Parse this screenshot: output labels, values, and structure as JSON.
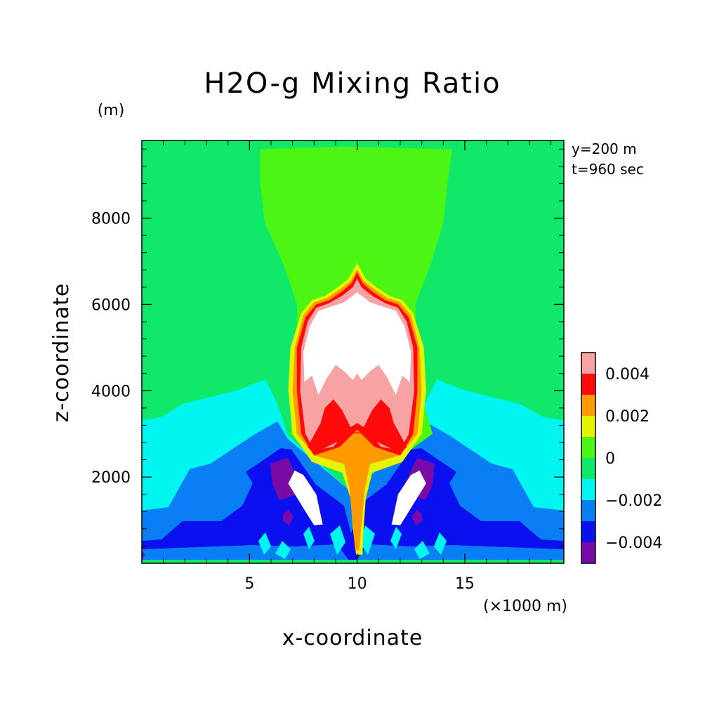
{
  "chart_data": {
    "type": "heatmap",
    "title": "H2O-g Mixing Ratio",
    "xlabel": "x-coordinate",
    "ylabel": "z-coordinate",
    "x_units": "(×1000 m)",
    "y_units": "(m)",
    "xlim": [
      0,
      19.6
    ],
    "ylim": [
      0,
      9800
    ],
    "x_ticks": [
      5,
      10,
      15
    ],
    "x_tick_labels": [
      "5",
      "10",
      "15"
    ],
    "y_ticks": [
      2000,
      4000,
      6000,
      8000
    ],
    "y_tick_labels": [
      "2000",
      "4000",
      "6000",
      "8000"
    ],
    "annotations": [
      "y=200 m",
      "t=960 sec"
    ],
    "colorbar": {
      "levels": [
        -0.005,
        -0.004,
        -0.003,
        -0.002,
        -0.001,
        0,
        0.001,
        0.002,
        0.003,
        0.004,
        0.005
      ],
      "colors": [
        "#7a0aa8",
        "#0a10ee",
        "#0a7ff5",
        "#00f5f0",
        "#10e86a",
        "#4cf514",
        "#e4f500",
        "#ff9a00",
        "#ff0a0a",
        "#f7a3a3"
      ],
      "labels": [
        {
          "value": -0.004,
          "text": "−0.004"
        },
        {
          "value": -0.002,
          "text": "−0.002"
        },
        {
          "value": 0,
          "text": "0"
        },
        {
          "value": 0.002,
          "text": "0.002"
        },
        {
          "value": 0.004,
          "text": "0.004"
        }
      ],
      "above_max_color": "#ffffff"
    },
    "contour_regions": [
      {
        "level": "0 to 0.001",
        "color": "#4cf514",
        "points": [
          [
            5.5,
            9600
          ],
          [
            9.5,
            9660
          ],
          [
            14.4,
            9600
          ],
          [
            14.2,
            8800
          ],
          [
            14,
            7900
          ],
          [
            13.4,
            6900
          ],
          [
            12.7,
            6000
          ],
          [
            12.8,
            4200
          ],
          [
            13.5,
            3000
          ],
          [
            12.4,
            2600
          ],
          [
            10,
            2400
          ],
          [
            7.6,
            2600
          ],
          [
            6.9,
            3000
          ],
          [
            7.2,
            4200
          ],
          [
            7.2,
            6000
          ],
          [
            6.6,
            6900
          ],
          [
            5.7,
            7900
          ],
          [
            5.5,
            8800
          ]
        ]
      },
      {
        "level": "0.001 to 0.002",
        "color": "#e4f500",
        "points": [
          [
            10,
            6960
          ],
          [
            10.4,
            6600
          ],
          [
            10.9,
            6400
          ],
          [
            11.5,
            6200
          ],
          [
            12.1,
            6100
          ],
          [
            12.6,
            5800
          ],
          [
            13.1,
            5000
          ],
          [
            13.2,
            4000
          ],
          [
            13,
            3000
          ],
          [
            12.1,
            2350
          ],
          [
            10.7,
            2100
          ],
          [
            10.4,
            1500
          ],
          [
            10.3,
            800
          ],
          [
            10.25,
            200
          ],
          [
            9.95,
            200
          ],
          [
            9.8,
            800
          ],
          [
            9.7,
            1500
          ],
          [
            9.3,
            2100
          ],
          [
            7.9,
            2350
          ],
          [
            7,
            3000
          ],
          [
            6.8,
            4000
          ],
          [
            6.9,
            5000
          ],
          [
            7.4,
            5800
          ],
          [
            7.9,
            6100
          ],
          [
            8.5,
            6200
          ],
          [
            9.1,
            6400
          ],
          [
            9.6,
            6600
          ]
        ]
      },
      {
        "level": "0.002 to 0.003",
        "color": "#ff9a00",
        "points": [
          [
            10,
            6820
          ],
          [
            10.3,
            6550
          ],
          [
            10.8,
            6350
          ],
          [
            11.4,
            6150
          ],
          [
            12,
            6050
          ],
          [
            12.5,
            5750
          ],
          [
            12.9,
            5000
          ],
          [
            13,
            4000
          ],
          [
            12.8,
            3000
          ],
          [
            12,
            2500
          ],
          [
            10.6,
            2300
          ],
          [
            10.35,
            1700
          ],
          [
            10.2,
            900
          ],
          [
            10.1,
            300
          ],
          [
            9.9,
            300
          ],
          [
            9.8,
            900
          ],
          [
            9.65,
            1700
          ],
          [
            9.4,
            2300
          ],
          [
            8,
            2500
          ],
          [
            7.2,
            3000
          ],
          [
            7,
            4000
          ],
          [
            7.1,
            5000
          ],
          [
            7.5,
            5750
          ],
          [
            8,
            6050
          ],
          [
            8.6,
            6150
          ],
          [
            9.2,
            6350
          ],
          [
            9.7,
            6550
          ]
        ]
      },
      {
        "level": "0.003 to 0.004",
        "color": "#ff0a0a",
        "points": [
          [
            10,
            6750
          ],
          [
            10.25,
            6500
          ],
          [
            10.7,
            6300
          ],
          [
            11.3,
            6100
          ],
          [
            11.9,
            6000
          ],
          [
            12.4,
            5700
          ],
          [
            12.8,
            5000
          ],
          [
            12.8,
            4000
          ],
          [
            12.6,
            3000
          ],
          [
            12,
            2500
          ],
          [
            10.8,
            2700
          ],
          [
            10,
            3100
          ],
          [
            9.2,
            2700
          ],
          [
            8,
            2500
          ],
          [
            7.4,
            3000
          ],
          [
            7.2,
            4000
          ],
          [
            7.2,
            5000
          ],
          [
            7.6,
            5700
          ],
          [
            8.1,
            6000
          ],
          [
            8.7,
            6100
          ],
          [
            9.3,
            6300
          ],
          [
            9.75,
            6500
          ]
        ]
      },
      {
        "level": "0.004 to 0.005",
        "color": "#f7a3a3",
        "points": [
          [
            10,
            6600
          ],
          [
            10.2,
            6400
          ],
          [
            10.7,
            6200
          ],
          [
            11.3,
            6030
          ],
          [
            11.9,
            5920
          ],
          [
            12.3,
            5600
          ],
          [
            12.6,
            5000
          ],
          [
            12.65,
            4000
          ],
          [
            12.4,
            3000
          ],
          [
            12,
            2620
          ],
          [
            11.1,
            2700
          ],
          [
            10.5,
            3100
          ],
          [
            10,
            3250
          ],
          [
            9.5,
            3100
          ],
          [
            8.9,
            2700
          ],
          [
            8,
            2620
          ],
          [
            7.6,
            3000
          ],
          [
            7.35,
            4000
          ],
          [
            7.4,
            5000
          ],
          [
            7.7,
            5600
          ],
          [
            8.1,
            5920
          ],
          [
            8.7,
            6030
          ],
          [
            9.3,
            6200
          ],
          [
            9.8,
            6400
          ]
        ]
      },
      {
        "level": "0.003 to 0.004",
        "color": "#ff0a0a",
        "points": [
          [
            7.7,
            2700
          ],
          [
            8.3,
            3250
          ],
          [
            8.5,
            3600
          ],
          [
            8.9,
            3800
          ],
          [
            9.3,
            3550
          ],
          [
            9.7,
            3150
          ],
          [
            10,
            3000
          ],
          [
            10.3,
            3150
          ],
          [
            10.7,
            3550
          ],
          [
            11.1,
            3800
          ],
          [
            11.5,
            3600
          ],
          [
            11.7,
            3250
          ],
          [
            12.3,
            2700
          ],
          [
            12,
            2550
          ],
          [
            10,
            3050
          ],
          [
            8,
            2550
          ]
        ]
      },
      {
        "level": "above 0.005",
        "color": "#ffffff",
        "points": [
          [
            10,
            6280
          ],
          [
            10.6,
            6050
          ],
          [
            11.2,
            5950
          ],
          [
            11.8,
            5850
          ],
          [
            12.2,
            5500
          ],
          [
            12.5,
            4900
          ],
          [
            12.45,
            4200
          ],
          [
            12.1,
            4350
          ],
          [
            11.8,
            3900
          ],
          [
            11.4,
            4300
          ],
          [
            11,
            4600
          ],
          [
            10.6,
            4450
          ],
          [
            10.2,
            4250
          ],
          [
            10,
            4400
          ],
          [
            9.8,
            4250
          ],
          [
            9.4,
            4450
          ],
          [
            9,
            4600
          ],
          [
            8.6,
            4300
          ],
          [
            8.2,
            3900
          ],
          [
            7.9,
            4350
          ],
          [
            7.55,
            4200
          ],
          [
            7.5,
            4900
          ],
          [
            7.8,
            5500
          ],
          [
            8.2,
            5850
          ],
          [
            8.8,
            5950
          ],
          [
            9.4,
            6050
          ]
        ]
      },
      {
        "level": "above 0.005",
        "color": "#ffffff",
        "points": [
          [
            6.8,
            1850
          ],
          [
            7.6,
            1200
          ],
          [
            8,
            880
          ],
          [
            8.4,
            900
          ],
          [
            8.1,
            1600
          ],
          [
            7.5,
            2050
          ],
          [
            7.1,
            2150
          ]
        ]
      },
      {
        "level": "above 0.005",
        "color": "#ffffff",
        "points": [
          [
            13.2,
            1850
          ],
          [
            12.4,
            1200
          ],
          [
            12,
            880
          ],
          [
            11.6,
            900
          ],
          [
            11.9,
            1600
          ],
          [
            12.5,
            2050
          ],
          [
            12.9,
            2150
          ]
        ]
      }
    ]
  }
}
